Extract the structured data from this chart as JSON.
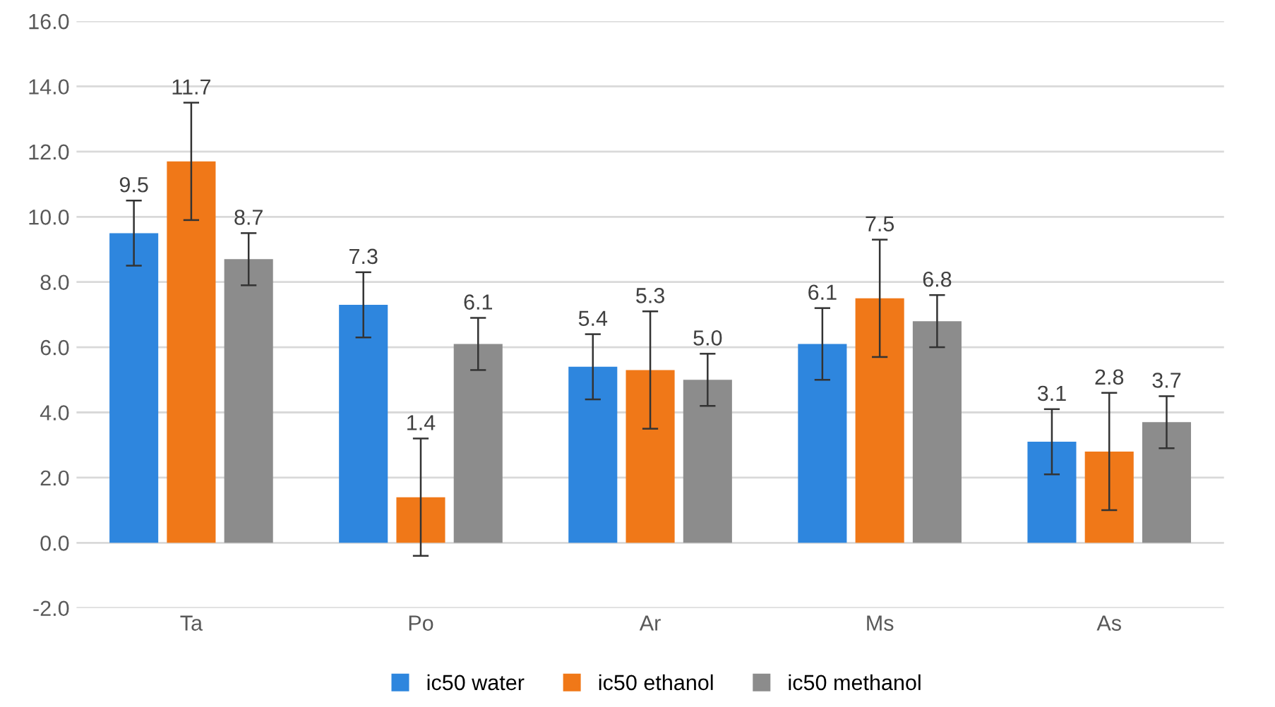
{
  "chart_data": {
    "type": "bar",
    "categories": [
      "Ta",
      "Po",
      "Ar",
      "Ms",
      "As"
    ],
    "series": [
      {
        "name": "ic50 water",
        "color": "#2e86de",
        "values": [
          9.5,
          7.3,
          5.4,
          6.1,
          3.1
        ],
        "errors": [
          1.0,
          1.0,
          1.0,
          1.1,
          1.0
        ],
        "value_labels": [
          "9.5",
          "7.3",
          "5.4",
          "6.1",
          "3.1"
        ]
      },
      {
        "name": "ic50 ethanol",
        "color": "#f07818",
        "values": [
          11.7,
          1.4,
          5.3,
          7.5,
          2.8
        ],
        "errors": [
          1.8,
          1.8,
          1.8,
          1.8,
          1.8
        ],
        "value_labels": [
          "11.7",
          "1.4",
          "5.3",
          "7.5",
          "2.8"
        ]
      },
      {
        "name": "ic50 methanol",
        "color": "#8c8c8c",
        "values": [
          8.7,
          6.1,
          5.0,
          6.8,
          3.7
        ],
        "errors": [
          0.8,
          0.8,
          0.8,
          0.8,
          0.8
        ],
        "value_labels": [
          "8.7",
          "6.1",
          "5.0",
          "6.8",
          "3.7"
        ]
      }
    ],
    "ylim": [
      -2,
      16
    ],
    "yticks": [
      {
        "value": -2,
        "label": "-2.0"
      },
      {
        "value": 0,
        "label": "0.0"
      },
      {
        "value": 2,
        "label": "2.0"
      },
      {
        "value": 4,
        "label": "4.0"
      },
      {
        "value": 6,
        "label": "6.0"
      },
      {
        "value": 8,
        "label": "8.0"
      },
      {
        "value": 10,
        "label": "10.0"
      },
      {
        "value": 12,
        "label": "12.0"
      },
      {
        "value": 14,
        "label": "14.0"
      },
      {
        "value": 16,
        "label": "16.0"
      }
    ],
    "grid": "y",
    "legend": "bottom"
  }
}
